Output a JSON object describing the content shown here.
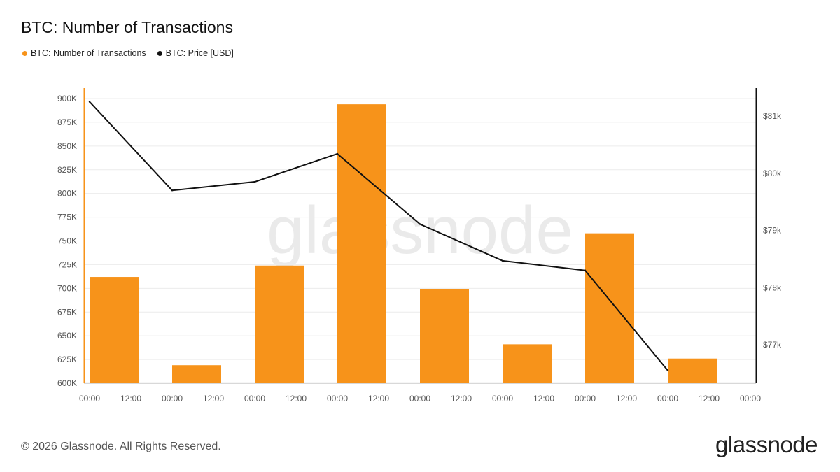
{
  "header": {
    "title": "BTC: Number of Transactions"
  },
  "legend": {
    "items": [
      {
        "label": "BTC: Number of Transactions",
        "color": "#f7931a"
      },
      {
        "label": "BTC: Price [USD]",
        "color": "#111111"
      }
    ]
  },
  "watermark": {
    "text": "glassnode"
  },
  "footer": {
    "copyright": "© 2026 Glassnode. All Rights Reserved.",
    "brand": "glassnode"
  },
  "colors": {
    "bar": "#f7931a",
    "line": "#111111",
    "grid": "#ececec"
  },
  "chart_data": {
    "type": "bar",
    "title": "BTC: Number of Transactions",
    "x_tick_labels": [
      "00:00",
      "12:00",
      "00:00",
      "12:00",
      "00:00",
      "12:00",
      "00:00",
      "12:00",
      "00:00",
      "12:00",
      "00:00",
      "12:00",
      "00:00",
      "12:00",
      "00:00",
      "12:00",
      "00:00"
    ],
    "y_left": {
      "min": 600000,
      "max": 900000,
      "ticks": [
        600000,
        625000,
        650000,
        675000,
        700000,
        725000,
        750000,
        775000,
        800000,
        825000,
        850000,
        875000,
        900000
      ],
      "tick_labels": [
        "600K",
        "625K",
        "650K",
        "675K",
        "700K",
        "725K",
        "750K",
        "775K",
        "800K",
        "825K",
        "850K",
        "875K",
        "900K"
      ]
    },
    "y_right": {
      "ticks": [
        77000,
        78000,
        79000,
        80000,
        81000
      ],
      "tick_labels": [
        "$77k",
        "$78k",
        "$79k",
        "$80k",
        "$81k"
      ]
    },
    "grid": true,
    "legend_position": "top-left",
    "series": [
      {
        "name": "BTC: Number of Transactions",
        "type": "bar",
        "axis": "left",
        "x_index": [
          0,
          2,
          4,
          6,
          8,
          10,
          12,
          14
        ],
        "values": [
          712000,
          619000,
          724000,
          894000,
          699000,
          641000,
          758000,
          626000
        ]
      },
      {
        "name": "BTC: Price [USD]",
        "type": "line",
        "axis": "right",
        "x_index": [
          0,
          2,
          4,
          6,
          8,
          10,
          12,
          14
        ],
        "values": [
          81250,
          79700,
          79850,
          80340,
          79110,
          78470,
          78300,
          76550
        ]
      }
    ]
  }
}
